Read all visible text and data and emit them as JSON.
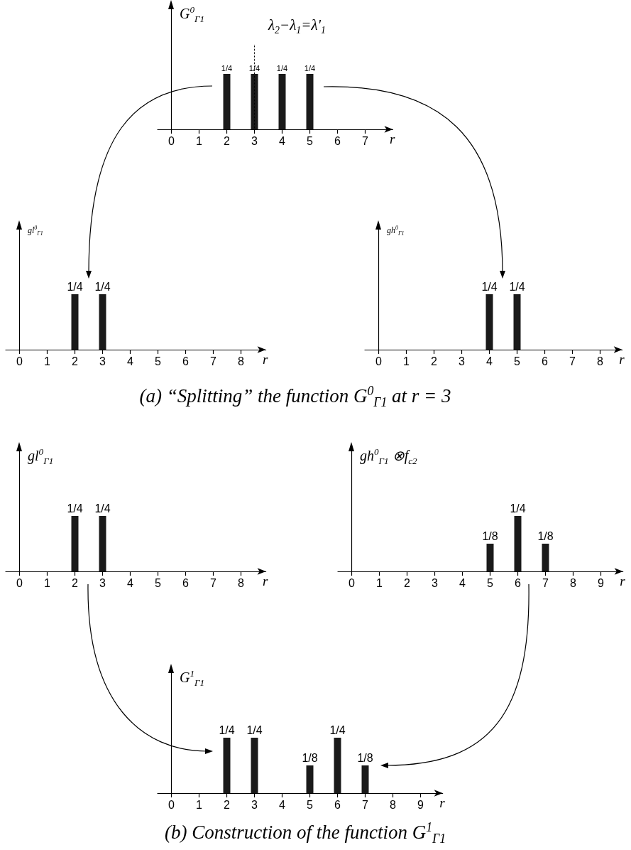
{
  "chart_data": [
    {
      "type": "bar",
      "ylabel": "G$^{0}$$_{Γ1}$",
      "xlabel": "r",
      "x": [
        2,
        3,
        4,
        5
      ],
      "values": [
        0.25,
        0.25,
        0.25,
        0.25
      ],
      "value_labels": [
        "1/4",
        "1/4",
        "1/4",
        "1/4"
      ],
      "color": "#1a1a1a",
      "xlim": [
        -0.5,
        8
      ],
      "xticks": [
        0,
        1,
        2,
        3,
        4,
        5,
        6,
        7
      ],
      "tick_labels": "x",
      "ref_lines": [
        {
          "axis": "x",
          "value": 3,
          "label": "λ$_{2}$−λ$_{1}$=λ'$_{1}$",
          "line_style": "dotted",
          "color": "#000000"
        }
      ],
      "annotations": [
        "(a) “Splitting” the function G$^{0}$$_{Γ1}$ at r = 3"
      ]
    },
    {
      "type": "bar",
      "ylabel": "gl$^{0}$$_{Γ1}$",
      "xlabel": "r",
      "x": [
        2,
        3
      ],
      "values": [
        0.25,
        0.25
      ],
      "value_labels": [
        "1/4",
        "1/4"
      ],
      "color": "#1a1a1a",
      "xlim": [
        -0.5,
        8.9
      ],
      "xticks": [
        0,
        1,
        2,
        3,
        4,
        5,
        6,
        7,
        8
      ],
      "tick_labels": "x"
    },
    {
      "type": "bar",
      "ylabel": "gh$^{0}$$_{Γ1}$",
      "xlabel": "r",
      "x": [
        4,
        5
      ],
      "values": [
        0.25,
        0.25
      ],
      "value_labels": [
        "1/4",
        "1/4"
      ],
      "color": "#1a1a1a",
      "xlim": [
        -0.5,
        8.8
      ],
      "xticks": [
        0,
        1,
        2,
        3,
        4,
        5,
        6,
        7,
        8
      ],
      "tick_labels": "x"
    },
    {
      "type": "bar",
      "ylabel": "gl$^{0}$$_{Γ1}$",
      "xlabel": "r",
      "x": [
        2,
        3
      ],
      "values": [
        0.25,
        0.25
      ],
      "value_labels": [
        "1/4",
        "1/4"
      ],
      "color": "#1a1a1a",
      "xlim": [
        -0.5,
        8.9
      ],
      "xticks": [
        0,
        1,
        2,
        3,
        4,
        5,
        6,
        7,
        8
      ],
      "tick_labels": "x"
    },
    {
      "type": "bar",
      "ylabel": "gh$^{0}$$_{Γ1}$ ⊗f$_{c2}$",
      "xlabel": "r",
      "x": [
        5,
        6,
        7
      ],
      "values": [
        0.125,
        0.25,
        0.125
      ],
      "value_labels": [
        "1/8",
        "1/4",
        "1/8"
      ],
      "color": "#1a1a1a",
      "xlim": [
        -0.5,
        9.8
      ],
      "xticks": [
        0,
        1,
        2,
        3,
        4,
        5,
        6,
        7,
        8,
        9
      ],
      "tick_labels": "x"
    },
    {
      "type": "bar",
      "ylabel": "G$^{1}$$_{Γ1}$",
      "xlabel": "r",
      "x": [
        2,
        3,
        5,
        6,
        7
      ],
      "values": [
        0.25,
        0.25,
        0.125,
        0.25,
        0.125
      ],
      "value_labels": [
        "1/4",
        "1/4",
        "1/8",
        "1/4",
        "1/8"
      ],
      "color": "#1a1a1a",
      "xlim": [
        -0.5,
        9.8
      ],
      "xticks": [
        0,
        1,
        2,
        3,
        4,
        5,
        6,
        7,
        8,
        9
      ],
      "tick_labels": "x",
      "annotations": [
        "(b) Construction of the function G$^{1}$$_{Γ1}$"
      ]
    }
  ]
}
